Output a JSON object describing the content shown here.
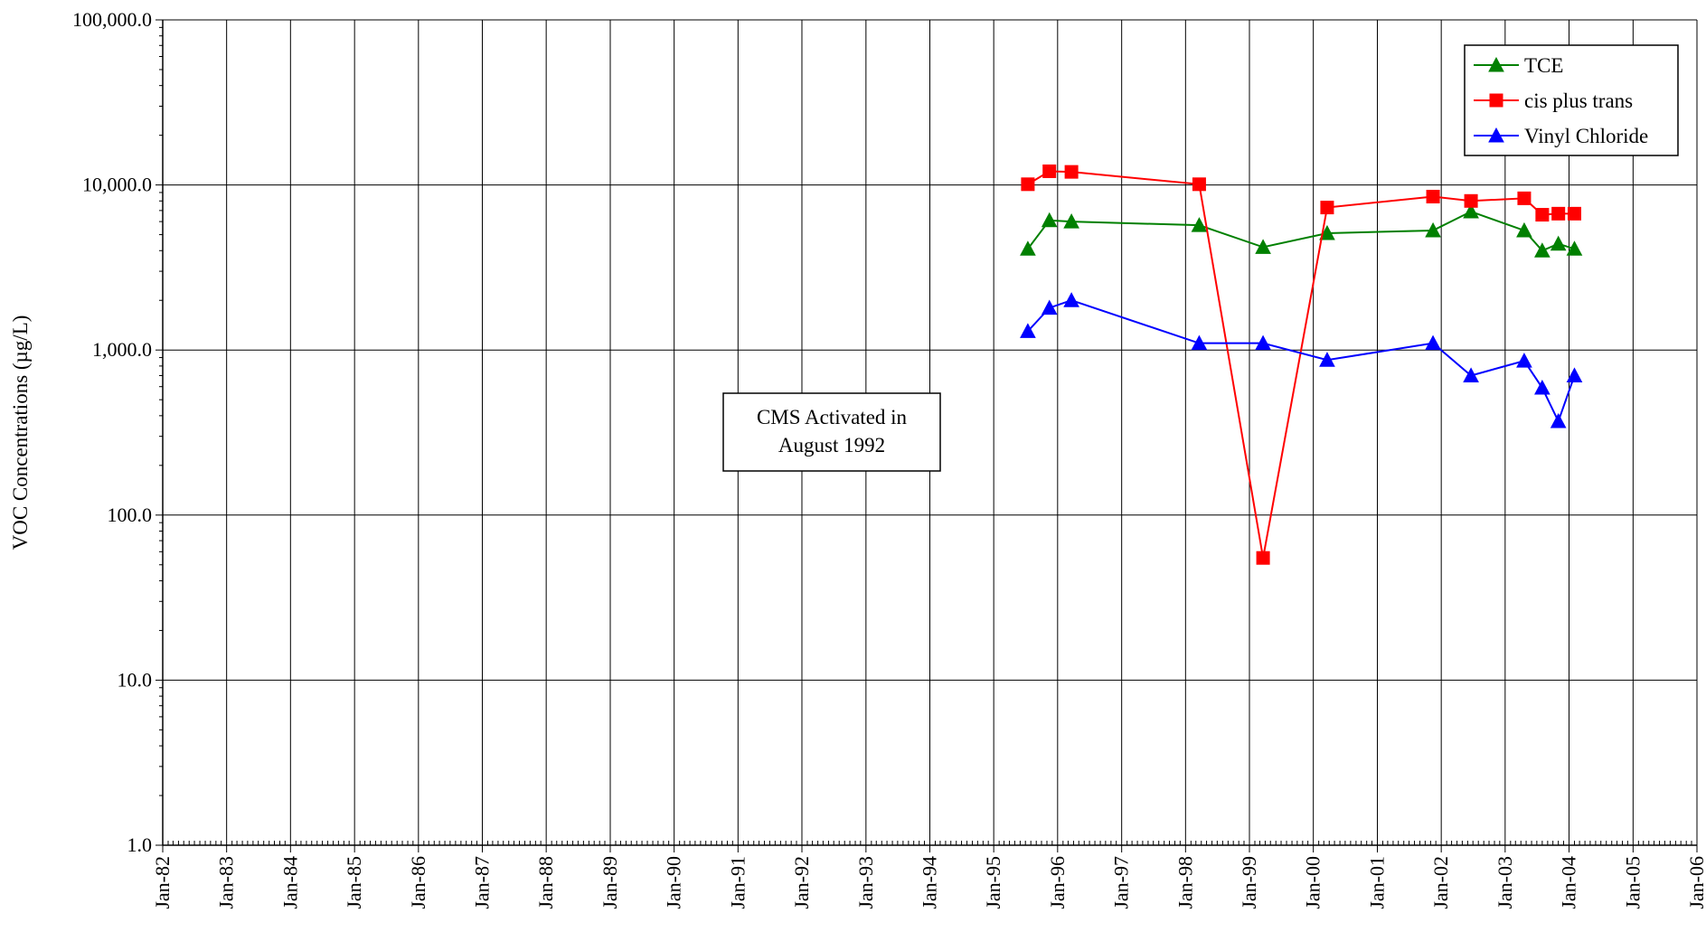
{
  "chart_data": {
    "type": "line",
    "title": "",
    "xlabel": "",
    "ylabel": "VOC Concentrations (µg/L)",
    "x_scale": "date",
    "y_scale": "log",
    "xlim": [
      "1982-01-01",
      "2006-01-01"
    ],
    "ylim": [
      1,
      100000
    ],
    "grid": true,
    "x_tick_labels": [
      "Jan-82",
      "Jan-83",
      "Jan-84",
      "Jan-85",
      "Jan-86",
      "Jan-87",
      "Jan-88",
      "Jan-89",
      "Jan-90",
      "Jan-91",
      "Jan-92",
      "Jan-93",
      "Jan-94",
      "Jan-95",
      "Jan-96",
      "Jan-97",
      "Jan-98",
      "Jan-99",
      "Jan-00",
      "Jan-01",
      "Jan-02",
      "Jan-03",
      "Jan-04",
      "Jan-05",
      "Jan-06"
    ],
    "y_tick_values": [
      1,
      10,
      100,
      1000,
      10000,
      100000
    ],
    "y_tick_labels": [
      "1.0",
      "10.0",
      "100.0",
      "1,000.0",
      "10,000.0",
      "100,000.0"
    ],
    "legend_position": "top-right",
    "annotation": {
      "line1": "CMS Activated in",
      "line2": "August 1992"
    },
    "series": [
      {
        "name": "TCE",
        "color": "#008000",
        "marker": "triangle",
        "x": [
          "1995-07-15",
          "1995-11-15",
          "1996-03-20",
          "1998-03-20",
          "1999-03-20",
          "2000-03-20",
          "2001-11-15",
          "2002-06-20",
          "2003-04-20",
          "2003-08-01",
          "2003-11-01",
          "2004-02-01"
        ],
        "y": [
          4100,
          6100,
          6000,
          5700,
          4200,
          5100,
          5300,
          6900,
          5300,
          4000,
          4400,
          4100
        ]
      },
      {
        "name": "cis plus trans",
        "color": "#ff0000",
        "marker": "square",
        "x": [
          "1995-07-15",
          "1995-11-15",
          "1996-03-20",
          "1998-03-20",
          "1999-03-20",
          "2000-03-20",
          "2001-11-15",
          "2002-06-20",
          "2003-04-20",
          "2003-08-01",
          "2003-11-01",
          "2004-02-01"
        ],
        "y": [
          10100,
          12100,
          12000,
          10100,
          55,
          7300,
          8500,
          8000,
          8300,
          6600,
          6700,
          6700
        ]
      },
      {
        "name": "Vinyl Chloride",
        "color": "#0000ff",
        "marker": "triangle",
        "x": [
          "1995-07-15",
          "1995-11-15",
          "1996-03-20",
          "1998-03-20",
          "1999-03-20",
          "2000-03-20",
          "2001-11-15",
          "2002-06-20",
          "2003-04-20",
          "2003-08-01",
          "2003-11-01",
          "2004-02-01"
        ],
        "y": [
          1300,
          1800,
          2000,
          1100,
          1100,
          870,
          1100,
          700,
          860,
          590,
          370,
          700
        ]
      }
    ]
  }
}
